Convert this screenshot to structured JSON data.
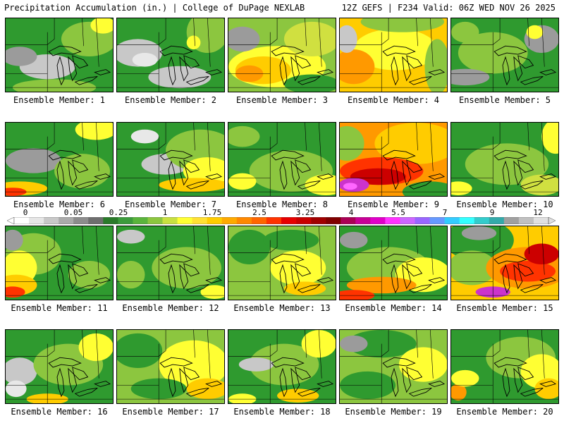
{
  "header": {
    "left": "Precipitation Accumulation (in.) | College of DuPage NEXLAB",
    "right": "12Z GEFS | F234 Valid: 06Z WED NOV 26 2025"
  },
  "members": [
    {
      "label": "Ensemble Member: 1",
      "base": "#2f9a2f",
      "blobs": [
        [
          "#c8c8c8",
          60,
          70,
          40,
          18
        ],
        [
          "#9b9b9b",
          20,
          55,
          25,
          14
        ],
        [
          "#8cc63f",
          120,
          30,
          40,
          25
        ],
        [
          "#ffff33",
          140,
          10,
          18,
          12
        ],
        [
          "#8cc63f",
          70,
          100,
          60,
          12
        ]
      ]
    },
    {
      "label": "Ensemble Member: 2",
      "base": "#2f9a2f",
      "blobs": [
        [
          "#c8c8c8",
          30,
          50,
          35,
          20
        ],
        [
          "#c8c8c8",
          90,
          85,
          45,
          16
        ],
        [
          "#e8e8e8",
          40,
          60,
          18,
          10
        ],
        [
          "#8cc63f",
          130,
          20,
          30,
          30
        ],
        [
          "#ffff33",
          110,
          35,
          10,
          10
        ]
      ]
    },
    {
      "label": "Ensemble Member: 3",
      "base": "#8cc63f",
      "blobs": [
        [
          "#ffff33",
          70,
          70,
          70,
          30
        ],
        [
          "#ffcc00",
          50,
          75,
          40,
          20
        ],
        [
          "#ff9900",
          30,
          80,
          20,
          12
        ],
        [
          "#d0e040",
          120,
          30,
          40,
          25
        ],
        [
          "#9b9b9b",
          20,
          30,
          25,
          18
        ],
        [
          "#2f9a2f",
          120,
          95,
          40,
          14
        ]
      ]
    },
    {
      "label": "Ensemble Member: 4",
      "base": "#ffcc00",
      "blobs": [
        [
          "#ffff33",
          80,
          45,
          60,
          30
        ],
        [
          "#ff9900",
          20,
          70,
          30,
          25
        ],
        [
          "#8cc63f",
          90,
          5,
          60,
          15
        ],
        [
          "#8cc63f",
          140,
          70,
          18,
          40
        ],
        [
          "#c8c8c8",
          10,
          30,
          15,
          20
        ]
      ]
    },
    {
      "label": "Ensemble Member: 5",
      "base": "#2f9a2f",
      "blobs": [
        [
          "#8cc63f",
          60,
          50,
          50,
          30
        ],
        [
          "#9b9b9b",
          130,
          30,
          25,
          20
        ],
        [
          "#9b9b9b",
          20,
          85,
          35,
          12
        ],
        [
          "#ffff33",
          120,
          20,
          12,
          10
        ],
        [
          "#8cc63f",
          20,
          20,
          20,
          15
        ]
      ]
    },
    {
      "label": "Ensemble Member: 6",
      "base": "#2f9a2f",
      "blobs": [
        [
          "#9b9b9b",
          40,
          55,
          40,
          18
        ],
        [
          "#ffff33",
          130,
          10,
          30,
          15
        ],
        [
          "#ffcc00",
          20,
          95,
          40,
          10
        ],
        [
          "#ff3300",
          10,
          100,
          20,
          6
        ],
        [
          "#8cc63f",
          110,
          70,
          40,
          25
        ]
      ]
    },
    {
      "label": "Ensemble Member: 7",
      "base": "#2f9a2f",
      "blobs": [
        [
          "#c8c8c8",
          70,
          60,
          35,
          15
        ],
        [
          "#8cc63f",
          120,
          40,
          50,
          30
        ],
        [
          "#ffff33",
          130,
          70,
          35,
          20
        ],
        [
          "#ffcc00",
          110,
          90,
          50,
          10
        ],
        [
          "#e8e8e8",
          40,
          20,
          20,
          10
        ]
      ]
    },
    {
      "label": "Ensemble Member: 8",
      "base": "#2f9a2f",
      "blobs": [
        [
          "#8cc63f",
          90,
          70,
          60,
          30
        ],
        [
          "#ffff33",
          140,
          90,
          30,
          15
        ],
        [
          "#ffff33",
          20,
          85,
          20,
          12
        ],
        [
          "#8cc63f",
          20,
          20,
          25,
          15
        ]
      ]
    },
    {
      "label": "Ensemble Member: 9",
      "base": "#ff9900",
      "blobs": [
        [
          "#ffcc00",
          110,
          30,
          60,
          30
        ],
        [
          "#2f9a2f",
          130,
          100,
          40,
          15
        ],
        [
          "#8cc63f",
          10,
          30,
          25,
          25
        ],
        [
          "#ff3300",
          60,
          70,
          60,
          20
        ],
        [
          "#cc0000",
          55,
          78,
          40,
          12
        ],
        [
          "#cc33cc",
          20,
          90,
          22,
          10
        ],
        [
          "#ff66ff",
          15,
          92,
          10,
          5
        ]
      ]
    },
    {
      "label": "Ensemble Member: 10",
      "base": "#2f9a2f",
      "blobs": [
        [
          "#8cc63f",
          80,
          60,
          60,
          30
        ],
        [
          "#ffff33",
          150,
          20,
          20,
          25
        ],
        [
          "#ffff33",
          10,
          95,
          20,
          10
        ],
        [
          "#d0e040",
          130,
          90,
          30,
          15
        ]
      ]
    },
    {
      "label": "Ensemble Member: 11",
      "base": "#2f9a2f",
      "blobs": [
        [
          "#8cc63f",
          40,
          40,
          40,
          30
        ],
        [
          "#ffff33",
          20,
          60,
          25,
          25
        ],
        [
          "#ffcc00",
          15,
          85,
          30,
          15
        ],
        [
          "#ff3300",
          10,
          95,
          18,
          8
        ],
        [
          "#9b9b9b",
          10,
          20,
          15,
          15
        ],
        [
          "#8cc63f",
          120,
          70,
          30,
          20
        ]
      ]
    },
    {
      "label": "Ensemble Member: 12",
      "base": "#2f9a2f",
      "blobs": [
        [
          "#8cc63f",
          100,
          60,
          50,
          30
        ],
        [
          "#ffff33",
          140,
          95,
          20,
          10
        ],
        [
          "#8cc63f",
          20,
          70,
          20,
          20
        ],
        [
          "#c8c8c8",
          20,
          15,
          20,
          10
        ]
      ]
    },
    {
      "label": "Ensemble Member: 13",
      "base": "#8cc63f",
      "blobs": [
        [
          "#2f9a2f",
          30,
          30,
          30,
          25
        ],
        [
          "#ffff33",
          100,
          60,
          40,
          25
        ],
        [
          "#ffcc00",
          110,
          90,
          30,
          10
        ],
        [
          "#2f9a2f",
          90,
          20,
          40,
          15
        ]
      ]
    },
    {
      "label": "Ensemble Member: 14",
      "base": "#2f9a2f",
      "blobs": [
        [
          "#8cc63f",
          70,
          60,
          60,
          30
        ],
        [
          "#ffff33",
          120,
          70,
          40,
          25
        ],
        [
          "#ff9900",
          60,
          85,
          50,
          12
        ],
        [
          "#ff3300",
          20,
          100,
          30,
          8
        ],
        [
          "#9b9b9b",
          20,
          20,
          20,
          12
        ]
      ]
    },
    {
      "label": "Ensemble Member: 15",
      "base": "#ffcc00",
      "blobs": [
        [
          "#2f9a2f",
          40,
          20,
          50,
          30
        ],
        [
          "#8cc63f",
          30,
          60,
          35,
          25
        ],
        [
          "#ff9900",
          110,
          60,
          60,
          30
        ],
        [
          "#ff3300",
          110,
          65,
          40,
          15
        ],
        [
          "#cc0000",
          130,
          40,
          25,
          15
        ],
        [
          "#cc33cc",
          60,
          95,
          25,
          8
        ],
        [
          "#9b9b9b",
          40,
          10,
          25,
          10
        ]
      ]
    },
    {
      "label": "Ensemble Member: 16",
      "base": "#2f9a2f",
      "blobs": [
        [
          "#c8c8c8",
          20,
          60,
          25,
          20
        ],
        [
          "#e8e8e8",
          15,
          85,
          15,
          12
        ],
        [
          "#8cc63f",
          90,
          50,
          50,
          30
        ],
        [
          "#ffff33",
          130,
          25,
          25,
          20
        ],
        [
          "#ffcc00",
          60,
          100,
          30,
          8
        ]
      ]
    },
    {
      "label": "Ensemble Member: 17",
      "base": "#8cc63f",
      "blobs": [
        [
          "#ffff33",
          110,
          50,
          50,
          35
        ],
        [
          "#2f9a2f",
          30,
          30,
          35,
          25
        ],
        [
          "#2f9a2f",
          60,
          85,
          40,
          15
        ],
        [
          "#ffcc00",
          130,
          85,
          30,
          15
        ]
      ]
    },
    {
      "label": "Ensemble Member: 18",
      "base": "#2f9a2f",
      "blobs": [
        [
          "#8cc63f",
          80,
          50,
          50,
          30
        ],
        [
          "#c8c8c8",
          40,
          50,
          25,
          10
        ],
        [
          "#ffff33",
          130,
          20,
          25,
          20
        ],
        [
          "#ffcc00",
          100,
          95,
          30,
          10
        ],
        [
          "#ffff33",
          20,
          100,
          20,
          8
        ]
      ]
    },
    {
      "label": "Ensemble Member: 19",
      "base": "#8cc63f",
      "blobs": [
        [
          "#2f9a2f",
          60,
          20,
          50,
          20
        ],
        [
          "#9b9b9b",
          20,
          20,
          20,
          12
        ],
        [
          "#ffff33",
          120,
          50,
          35,
          25
        ],
        [
          "#2f9a2f",
          40,
          80,
          40,
          20
        ]
      ]
    },
    {
      "label": "Ensemble Member: 20",
      "base": "#2f9a2f",
      "blobs": [
        [
          "#8cc63f",
          100,
          40,
          50,
          30
        ],
        [
          "#ffff33",
          130,
          60,
          30,
          25
        ],
        [
          "#ffcc00",
          140,
          85,
          20,
          15
        ],
        [
          "#ff9900",
          10,
          90,
          12,
          12
        ],
        [
          "#ffff33",
          20,
          70,
          20,
          12
        ]
      ]
    }
  ],
  "colorbar": {
    "labels": [
      "0",
      "0.05",
      "0.25",
      "1",
      "1.75",
      "2.5",
      "3.25",
      "4",
      "5.5",
      "7",
      "9",
      "12"
    ],
    "colors": [
      "#ffffff",
      "#e6e6e6",
      "#c8c8c8",
      "#aaaaaa",
      "#8c8c8c",
      "#6e6e6e",
      "#2a7a2a",
      "#3c9b3c",
      "#5ab43c",
      "#8cc63f",
      "#c8e040",
      "#ffff33",
      "#ffe033",
      "#ffcc00",
      "#ffaa00",
      "#ff8800",
      "#ff6600",
      "#ff3300",
      "#e60000",
      "#c80000",
      "#a00000",
      "#800000",
      "#aa0055",
      "#c80096",
      "#e000c8",
      "#ff33ff",
      "#cc66ff",
      "#9966ff",
      "#6699ff",
      "#33ccff",
      "#33ffff",
      "#33cccc",
      "#33aaaa",
      "#a0a0a0",
      "#c0c0c0",
      "#e0e0e0"
    ]
  }
}
